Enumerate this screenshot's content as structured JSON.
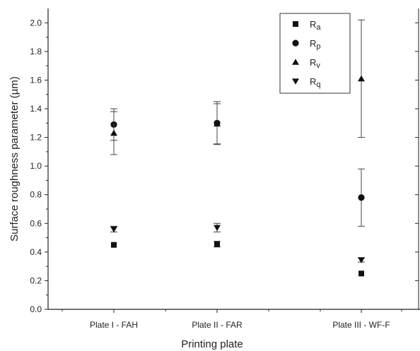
{
  "chart_data": {
    "type": "scatter",
    "title": "",
    "xlabel": "Printing plate",
    "ylabel": "Surface roughness parameter (µm)",
    "ylim": [
      0,
      2.1
    ],
    "yticks": [
      "0.0",
      "0.2",
      "0.4",
      "0.6",
      "0.8",
      "1.0",
      "1.2",
      "1.4",
      "1.6",
      "1.8",
      "2.0"
    ],
    "categories": [
      "Plate I - FAH",
      "Plate II - FAR",
      "Plate III - WF-F"
    ],
    "legend_position": "top-right",
    "grid": false,
    "series": [
      {
        "name": "Ra",
        "base": "R",
        "sub": "a",
        "marker": "square",
        "values": [
          0.45,
          0.455,
          0.25
        ],
        "error": [
          0.0,
          0.02,
          0.0
        ]
      },
      {
        "name": "Rp",
        "base": "R",
        "sub": "p",
        "marker": "circle",
        "values": [
          1.29,
          1.3,
          0.78
        ],
        "error": [
          0.11,
          0.15,
          0.2
        ]
      },
      {
        "name": "Rv",
        "base": "R",
        "sub": "v",
        "marker": "triangle-up",
        "values": [
          1.23,
          1.295,
          1.61
        ],
        "error": [
          0.15,
          0.14,
          0.41
        ]
      },
      {
        "name": "Rq",
        "base": "R",
        "sub": "q",
        "marker": "triangle-down",
        "values": [
          0.56,
          0.57,
          0.345
        ],
        "error": [
          0.02,
          0.03,
          0.015
        ]
      }
    ]
  }
}
